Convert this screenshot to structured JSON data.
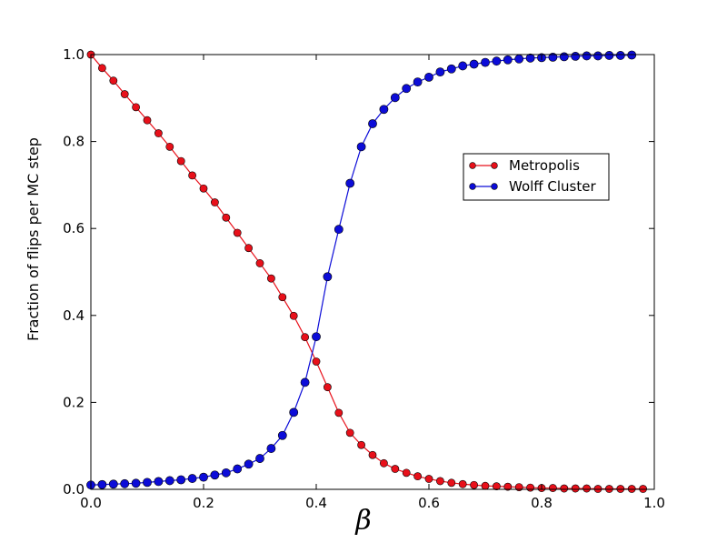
{
  "chart_data": {
    "type": "line",
    "title": "",
    "xlabel": "β",
    "ylabel": "Fraction of flips per MC step",
    "xlim": [
      0.0,
      1.0
    ],
    "ylim": [
      0.0,
      1.0
    ],
    "xticks": [
      0.0,
      0.2,
      0.4,
      0.6,
      0.8,
      1.0
    ],
    "xtick_labels": [
      "0.0",
      "0.2",
      "0.4",
      "0.6",
      "0.8",
      "1.0"
    ],
    "yticks": [
      0.0,
      0.2,
      0.4,
      0.6,
      0.8,
      1.0
    ],
    "ytick_labels": [
      "0.0",
      "0.2",
      "0.4",
      "0.6",
      "0.8",
      "1.0"
    ],
    "grid": false,
    "legend_position": "right",
    "series": [
      {
        "name": "Metropolis",
        "color": "#e8101a",
        "marker_size": "small",
        "x": [
          0.0,
          0.02,
          0.04,
          0.06,
          0.08,
          0.1,
          0.12,
          0.14,
          0.16,
          0.18,
          0.2,
          0.22,
          0.24,
          0.26,
          0.28,
          0.3,
          0.32,
          0.34,
          0.36,
          0.38,
          0.4,
          0.42,
          0.44,
          0.46,
          0.48,
          0.5,
          0.52,
          0.54,
          0.56,
          0.58,
          0.6,
          0.62,
          0.64,
          0.66,
          0.68,
          0.7,
          0.72,
          0.74,
          0.76,
          0.78,
          0.8,
          0.82,
          0.84,
          0.86,
          0.88,
          0.9,
          0.92,
          0.94,
          0.96,
          0.98
        ],
        "y": [
          1.0,
          0.969,
          0.94,
          0.909,
          0.879,
          0.849,
          0.819,
          0.788,
          0.755,
          0.722,
          0.692,
          0.66,
          0.625,
          0.59,
          0.555,
          0.52,
          0.485,
          0.442,
          0.399,
          0.35,
          0.294,
          0.235,
          0.176,
          0.13,
          0.102,
          0.079,
          0.06,
          0.047,
          0.038,
          0.03,
          0.024,
          0.019,
          0.015,
          0.012,
          0.01,
          0.008,
          0.007,
          0.006,
          0.005,
          0.004,
          0.003,
          0.003,
          0.002,
          0.002,
          0.002,
          0.001,
          0.001,
          0.001,
          0.001,
          0.001
        ]
      },
      {
        "name": "Wolff Cluster",
        "color": "#0c0cd8",
        "marker_size": "large",
        "x": [
          0.0,
          0.02,
          0.04,
          0.06,
          0.08,
          0.1,
          0.12,
          0.14,
          0.16,
          0.18,
          0.2,
          0.22,
          0.24,
          0.26,
          0.28,
          0.3,
          0.32,
          0.34,
          0.36,
          0.38,
          0.4,
          0.42,
          0.44,
          0.46,
          0.48,
          0.5,
          0.52,
          0.54,
          0.56,
          0.58,
          0.6,
          0.62,
          0.64,
          0.66,
          0.68,
          0.7,
          0.72,
          0.74,
          0.76,
          0.78,
          0.8,
          0.82,
          0.84,
          0.86,
          0.88,
          0.9,
          0.92,
          0.94,
          0.96
        ],
        "y": [
          0.01,
          0.011,
          0.012,
          0.013,
          0.014,
          0.016,
          0.018,
          0.02,
          0.022,
          0.025,
          0.028,
          0.033,
          0.038,
          0.047,
          0.058,
          0.071,
          0.094,
          0.124,
          0.177,
          0.246,
          0.351,
          0.489,
          0.598,
          0.704,
          0.788,
          0.841,
          0.874,
          0.901,
          0.922,
          0.937,
          0.948,
          0.96,
          0.967,
          0.974,
          0.978,
          0.982,
          0.985,
          0.988,
          0.99,
          0.992,
          0.993,
          0.994,
          0.995,
          0.996,
          0.997,
          0.997,
          0.998,
          0.998,
          0.999
        ]
      }
    ]
  }
}
